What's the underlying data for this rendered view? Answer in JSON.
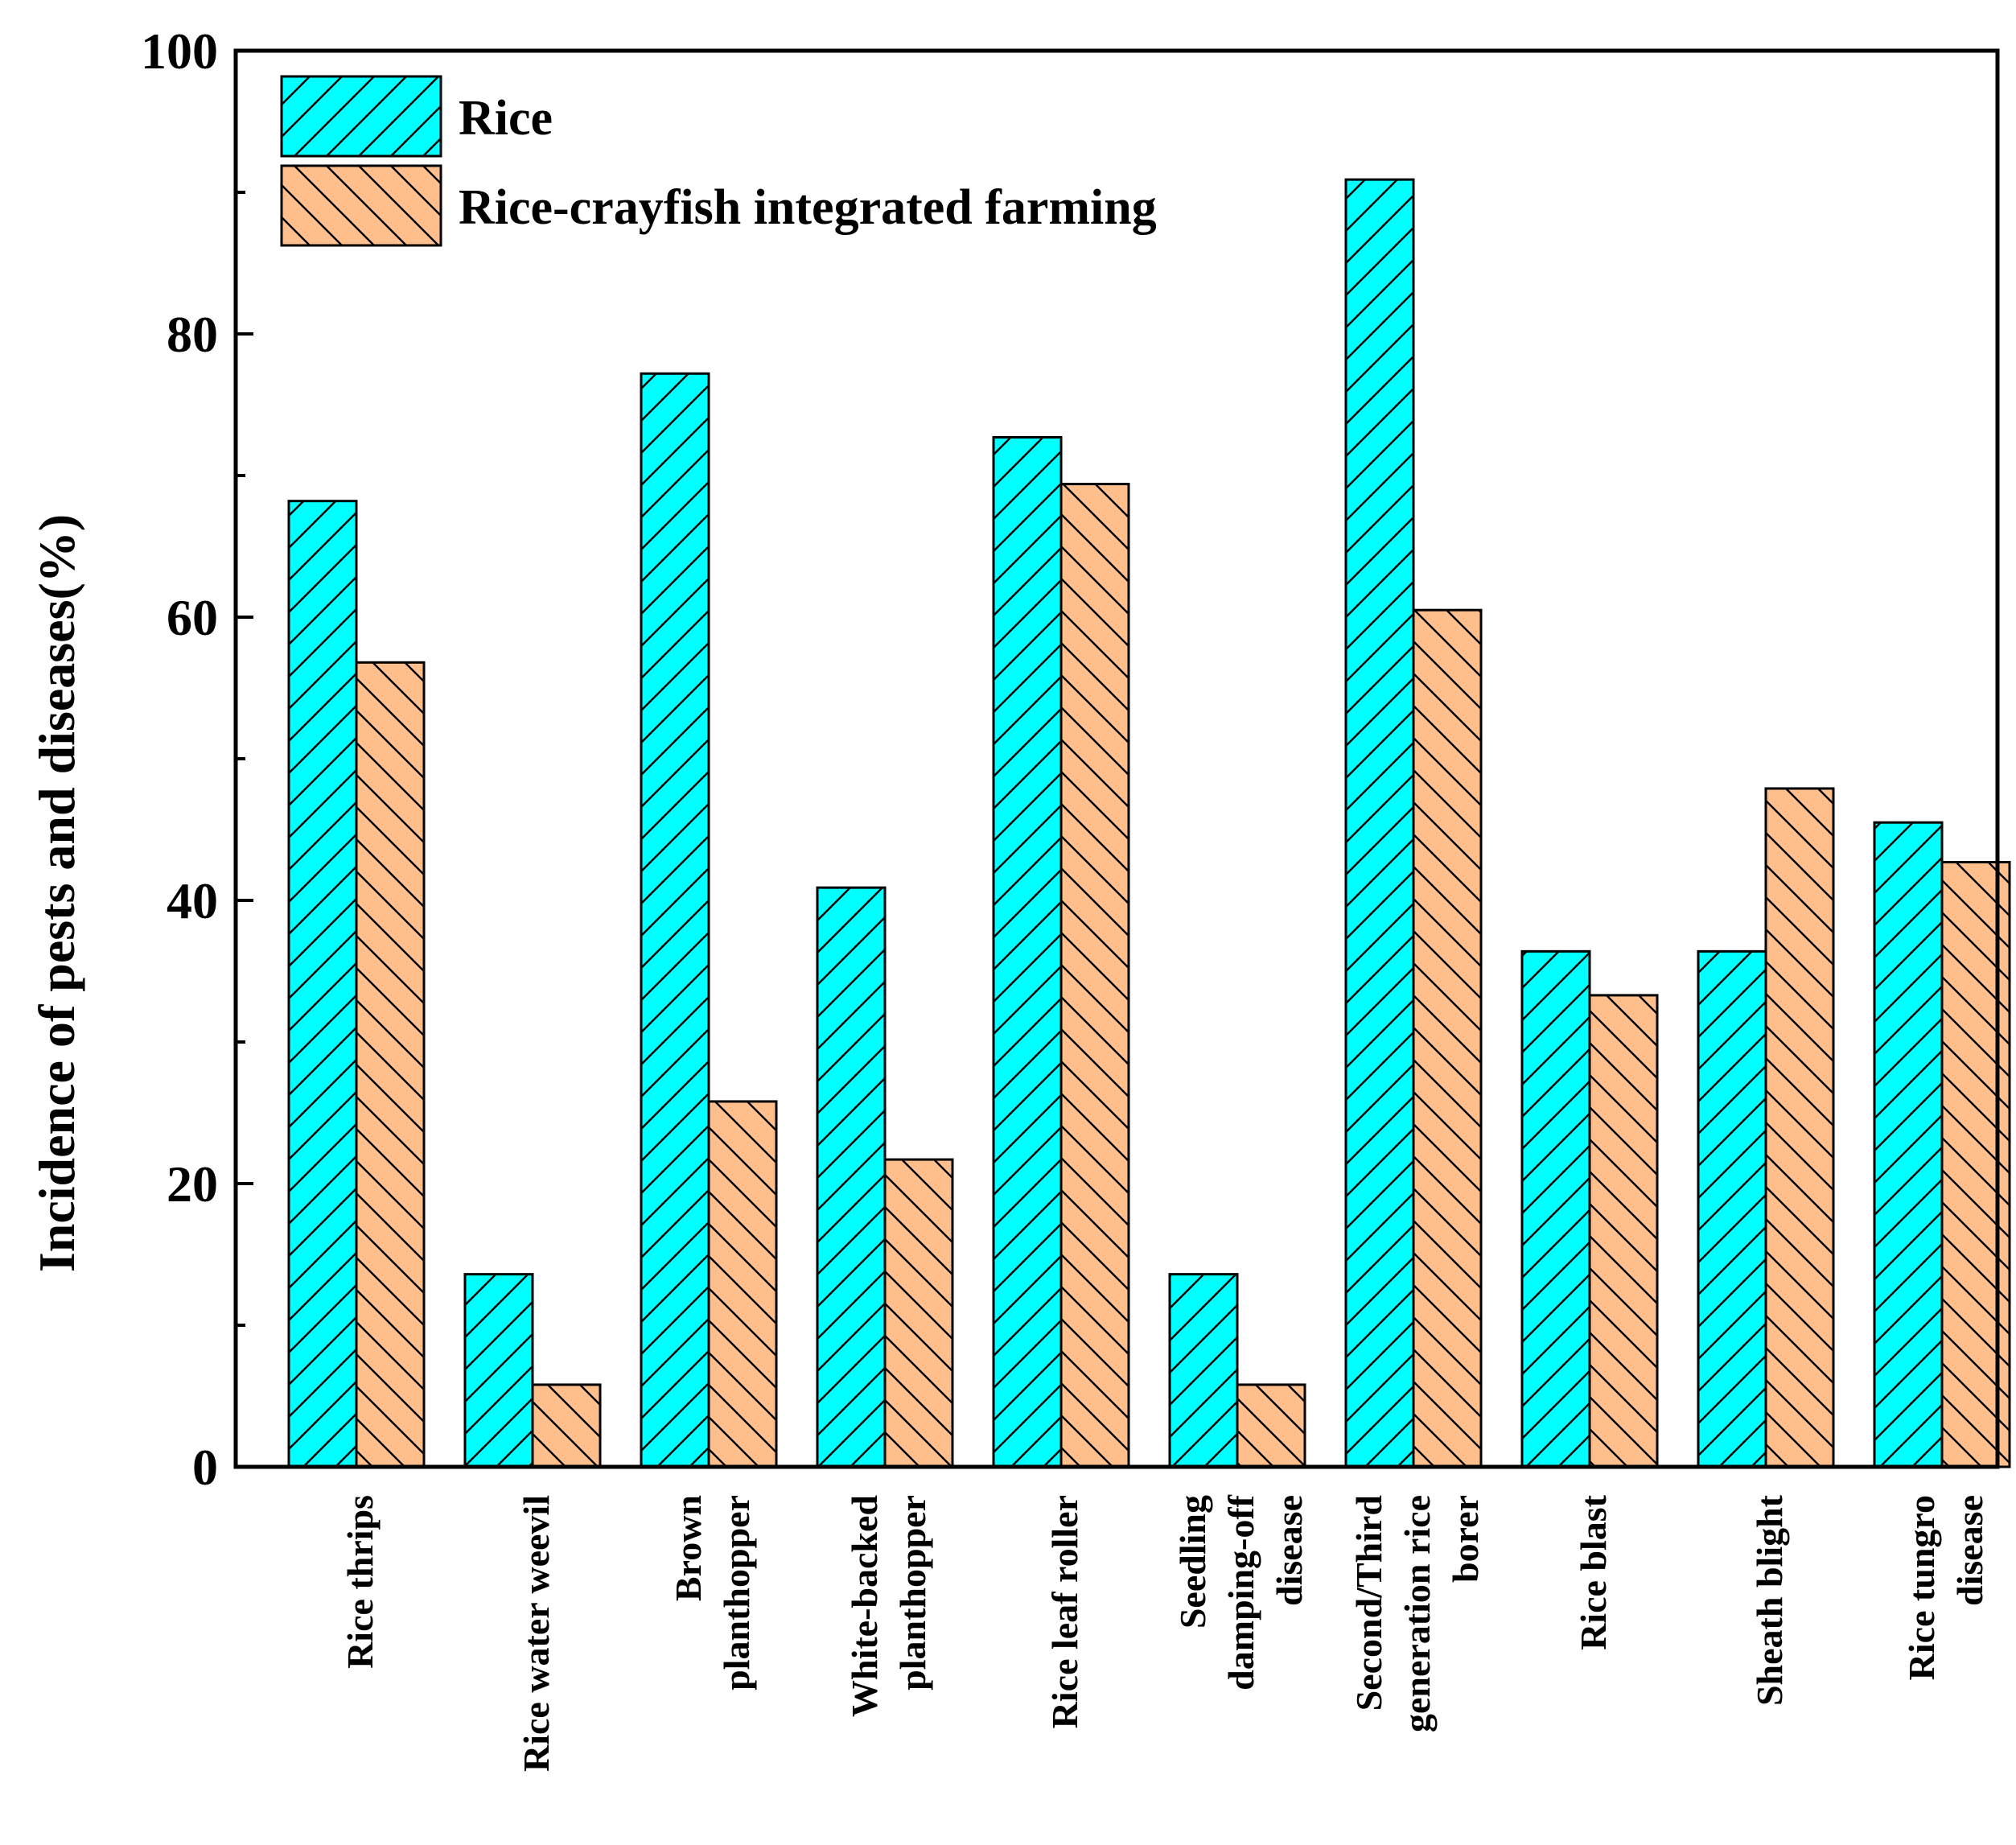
{
  "chart_data": {
    "type": "bar",
    "title": "",
    "xlabel": "",
    "ylabel": "Incidence of pests and diseases(%)",
    "ylim": [
      0,
      100
    ],
    "yticks": [
      0,
      20,
      40,
      60,
      80,
      100
    ],
    "grid": false,
    "legend_position": "top-left",
    "categories": [
      [
        "Rice thrips"
      ],
      [
        "Rice water weevil"
      ],
      [
        "Brown",
        "planthopper"
      ],
      [
        "White-backed",
        "planthopper"
      ],
      [
        "Rice leaf roller"
      ],
      [
        "Seedling",
        "damping-off",
        "disease"
      ],
      [
        "Second/Third",
        "generation rice",
        "borer"
      ],
      [
        "Rice blast"
      ],
      [
        "Sheath blight"
      ],
      [
        "Rice tungro",
        "disease"
      ]
    ],
    "series": [
      {
        "name": "Rice",
        "color": "#00FFFF",
        "hatch": "forward",
        "values": [
          68.2,
          13.6,
          77.2,
          40.9,
          72.7,
          13.6,
          90.9,
          36.4,
          36.4,
          45.5
        ]
      },
      {
        "name": "Rice-crayfish integrated farming",
        "color": "#FFBF8C",
        "hatch": "backward",
        "values": [
          56.8,
          5.8,
          25.8,
          21.7,
          69.4,
          5.8,
          60.5,
          33.3,
          47.9,
          42.7
        ]
      }
    ]
  }
}
